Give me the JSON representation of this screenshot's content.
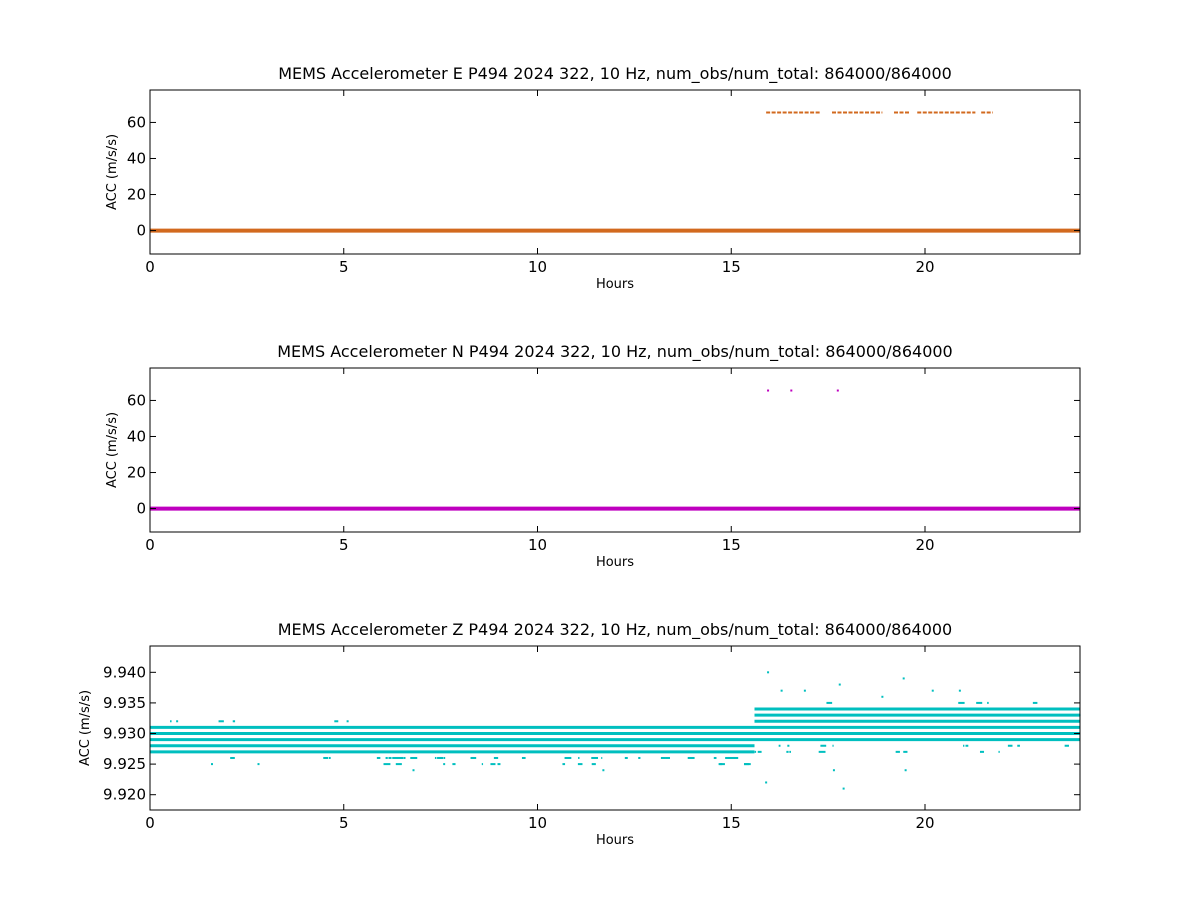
{
  "chart_data": [
    {
      "type": "scatter",
      "title": "MEMS Accelerometer E P494 2024 322, 10 Hz, num_obs/num_total: 864000/864000",
      "xlabel": "Hours",
      "ylabel": "ACC (m/s/s)",
      "xlim": [
        0,
        24
      ],
      "ylim": [
        -13,
        78
      ],
      "xticks": [
        0,
        5,
        10,
        15,
        20
      ],
      "yticks": [
        0,
        20,
        40,
        60
      ],
      "xtick_labels": [
        "0",
        "5",
        "10",
        "15",
        "20"
      ],
      "ytick_labels": [
        "0",
        "20",
        "40",
        "60"
      ],
      "grid": false,
      "color": "#d2691e",
      "series": [
        {
          "baseline": {
            "value": 0,
            "x_range": [
              0,
              24
            ]
          },
          "high_segments": {
            "value": 65.5,
            "x_ranges": [
              [
                15.9,
                17.3
              ],
              [
                17.6,
                18.9
              ],
              [
                19.2,
                19.6
              ],
              [
                19.8,
                21.3
              ],
              [
                21.45,
                21.75
              ]
            ]
          }
        }
      ]
    },
    {
      "type": "scatter",
      "title": "MEMS Accelerometer N P494 2024 322, 10 Hz, num_obs/num_total: 864000/864000",
      "xlabel": "Hours",
      "ylabel": "ACC (m/s/s)",
      "xlim": [
        0,
        24
      ],
      "ylim": [
        -13,
        78
      ],
      "xticks": [
        0,
        5,
        10,
        15,
        20
      ],
      "yticks": [
        0,
        20,
        40,
        60
      ],
      "xtick_labels": [
        "0",
        "5",
        "10",
        "15",
        "20"
      ],
      "ytick_labels": [
        "0",
        "20",
        "40",
        "60"
      ],
      "grid": false,
      "color": "#bf00bf",
      "series": [
        {
          "baseline": {
            "value": 0,
            "x_range": [
              0,
              24
            ]
          },
          "points": [
            {
              "x": 15.95,
              "y": 65.5
            },
            {
              "x": 16.55,
              "y": 65.5
            },
            {
              "x": 17.75,
              "y": 65.5
            }
          ]
        }
      ]
    },
    {
      "type": "scatter",
      "title": "MEMS Accelerometer Z P494 2024 322, 10 Hz, num_obs/num_total: 864000/864000",
      "xlabel": "Hours",
      "ylabel": "ACC (m/s/s)",
      "xlim": [
        0,
        24
      ],
      "ylim": [
        9.9175,
        9.9443
      ],
      "xticks": [
        0,
        5,
        10,
        15,
        20
      ],
      "yticks": [
        9.92,
        9.925,
        9.93,
        9.935,
        9.94
      ],
      "xtick_labels": [
        "0",
        "5",
        "10",
        "15",
        "20"
      ],
      "ytick_labels": [
        "9.920",
        "9.925",
        "9.930",
        "9.935",
        "9.940"
      ],
      "grid": false,
      "color": "#00bfbf",
      "series": [
        {
          "dense_bands": [
            {
              "x_range": [
                0,
                15.6
              ],
              "y_range": [
                9.927,
                9.931
              ]
            },
            {
              "x_range": [
                15.6,
                24
              ],
              "y_range": [
                9.929,
                9.934
              ]
            }
          ],
          "sparse_bands": [
            {
              "x_range": [
                0,
                6
              ],
              "y_range": [
                9.926,
                9.932
              ]
            },
            {
              "x_range": [
                6,
                12
              ],
              "y_range": [
                9.925,
                9.929
              ]
            },
            {
              "x_range": [
                12,
                15.6
              ],
              "y_range": [
                9.925,
                9.931
              ]
            },
            {
              "x_range": [
                15.6,
                23
              ],
              "y_range": [
                9.927,
                9.935
              ]
            },
            {
              "x_range": [
                23,
                24
              ],
              "y_range": [
                9.928,
                9.934
              ]
            }
          ],
          "outliers": [
            {
              "x": 15.95,
              "y": 9.94
            },
            {
              "x": 15.9,
              "y": 9.922
            },
            {
              "x": 17.8,
              "y": 9.938
            },
            {
              "x": 17.65,
              "y": 9.924
            },
            {
              "x": 17.9,
              "y": 9.921
            },
            {
              "x": 19.45,
              "y": 9.939
            },
            {
              "x": 19.5,
              "y": 9.924
            },
            {
              "x": 16.3,
              "y": 9.937
            },
            {
              "x": 16.9,
              "y": 9.937
            },
            {
              "x": 18.9,
              "y": 9.936
            },
            {
              "x": 20.2,
              "y": 9.937
            },
            {
              "x": 20.9,
              "y": 9.937
            },
            {
              "x": 1.6,
              "y": 9.925
            },
            {
              "x": 2.8,
              "y": 9.925
            },
            {
              "x": 6.8,
              "y": 9.924
            },
            {
              "x": 11.7,
              "y": 9.924
            },
            {
              "x": 5.1,
              "y": 9.932
            },
            {
              "x": 0.7,
              "y": 9.932
            }
          ]
        }
      ]
    }
  ]
}
